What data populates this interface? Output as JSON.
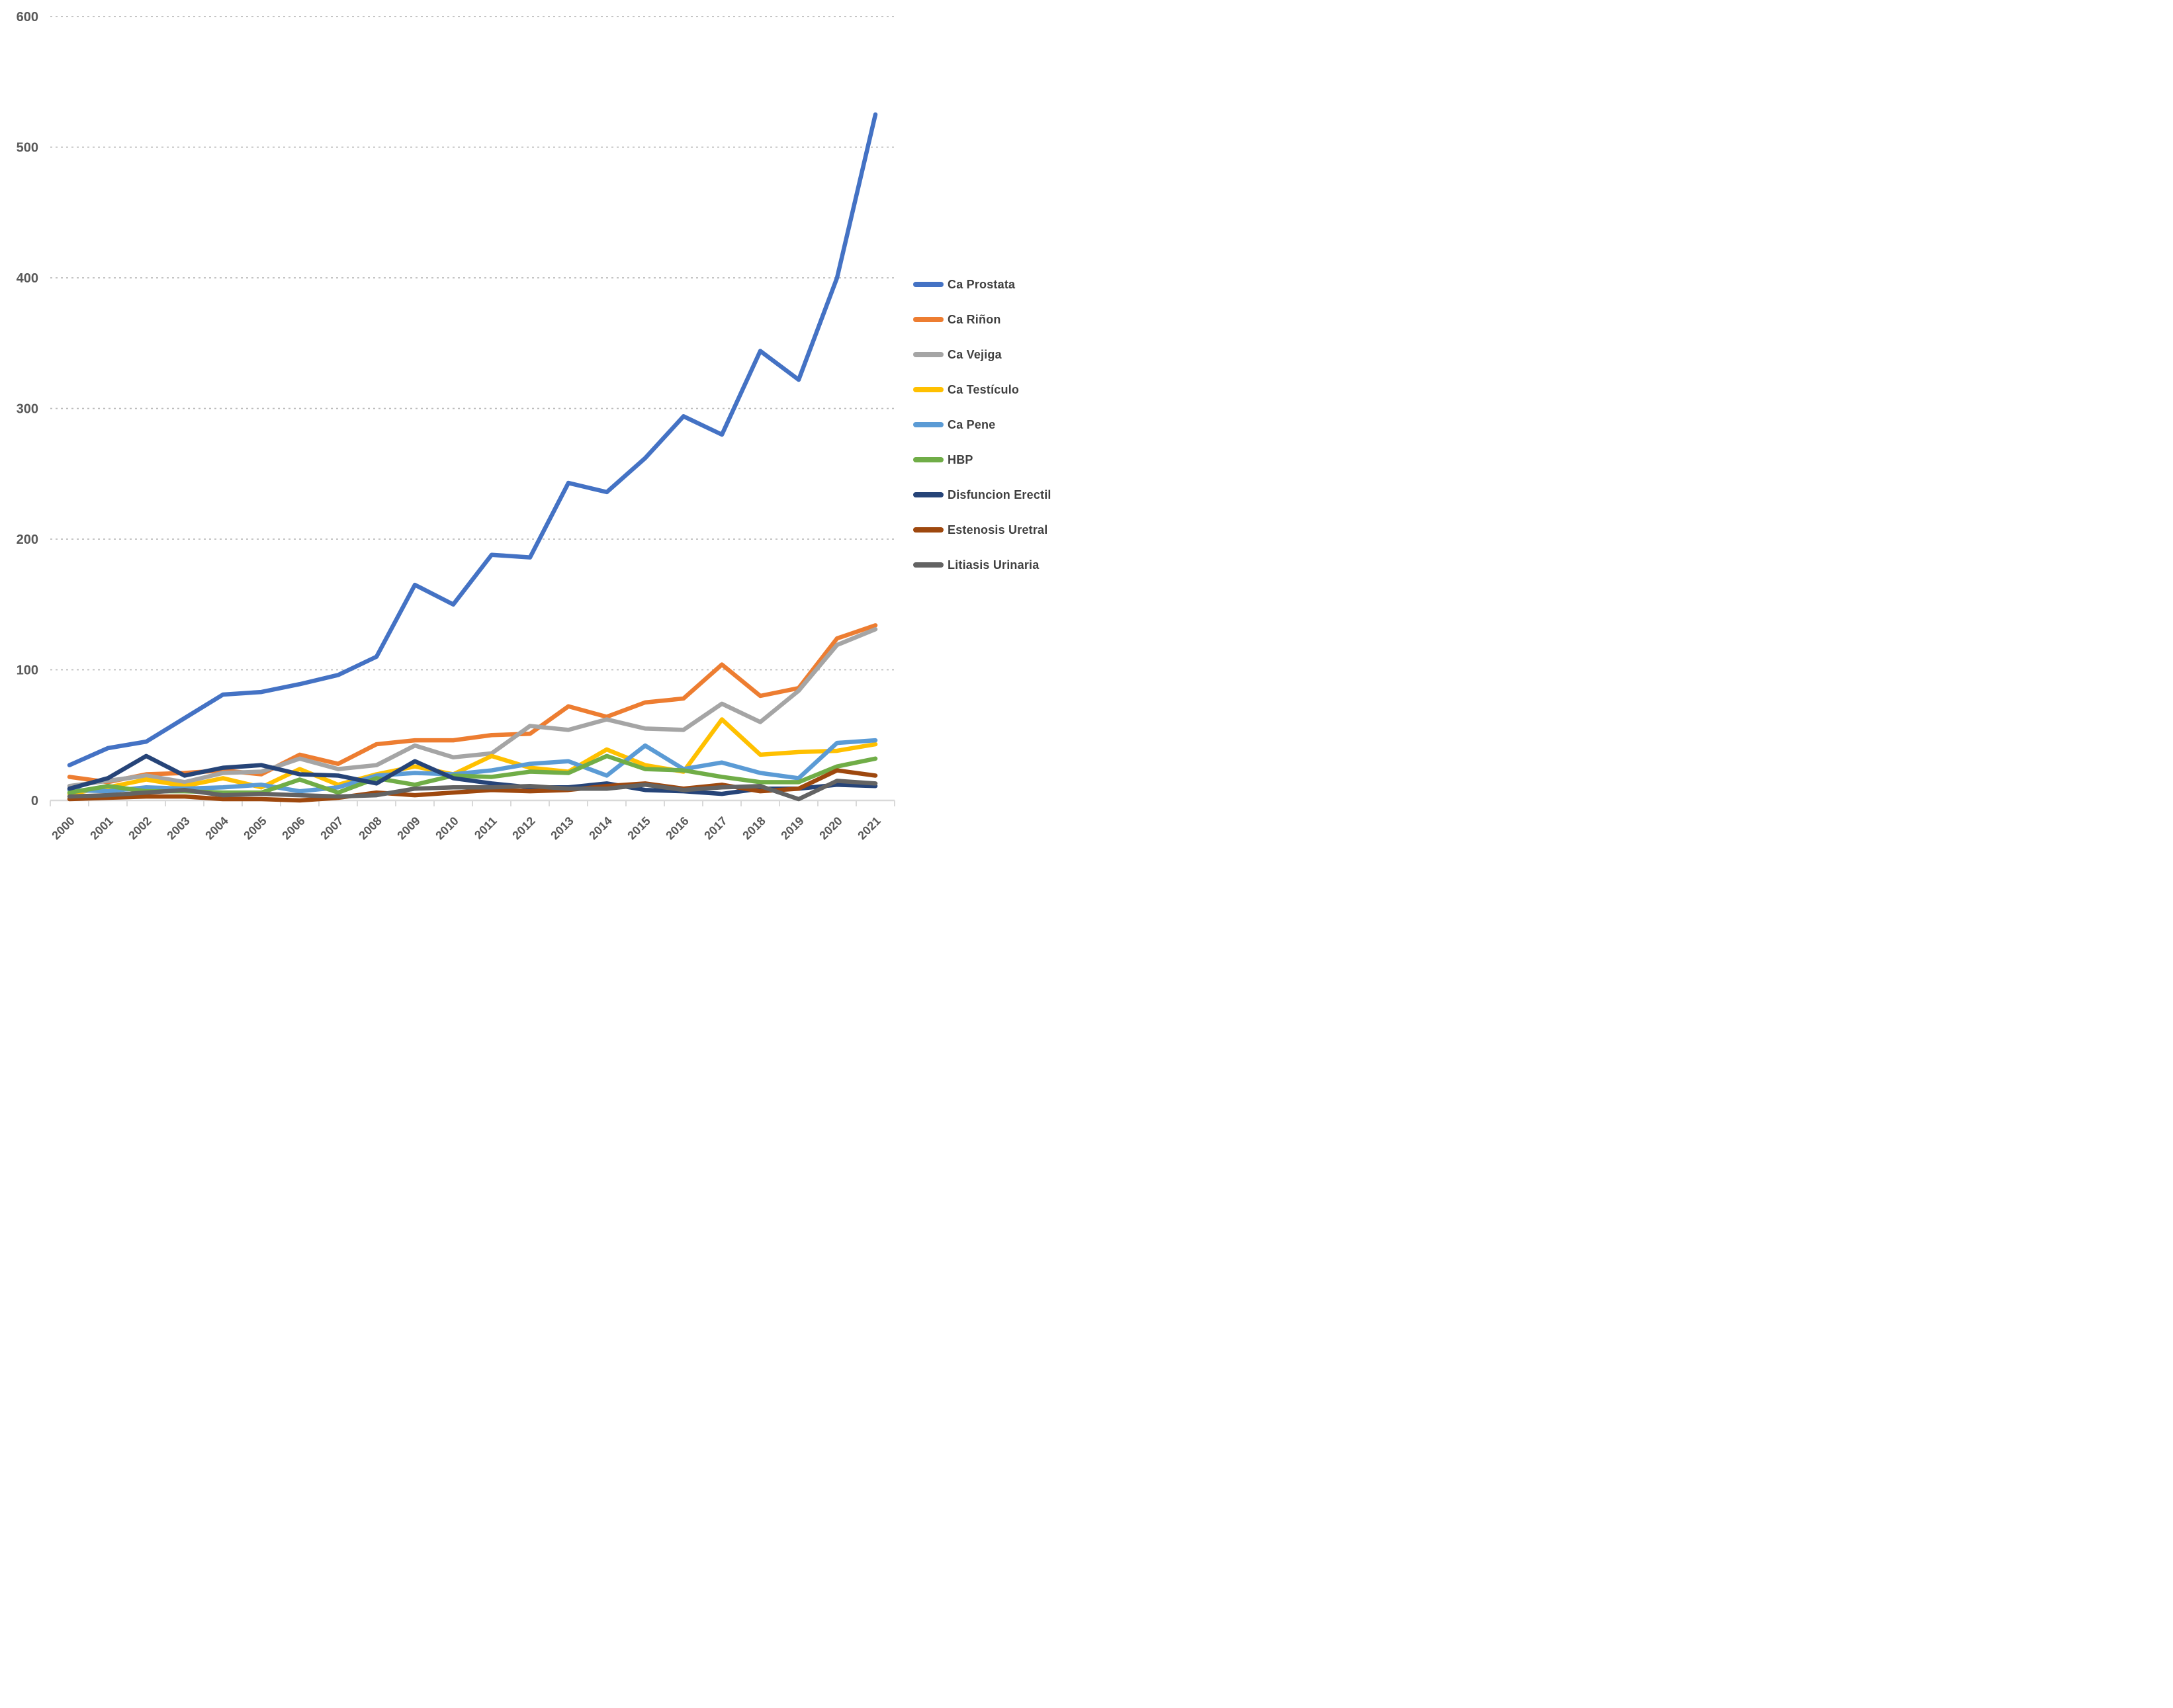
{
  "page": {
    "background_color": "#ffffff"
  },
  "chart_data": {
    "type": "line",
    "title": "",
    "xlabel": "",
    "ylabel": "",
    "x": [
      "2000",
      "2001",
      "2002",
      "2003",
      "2004",
      "2005",
      "2006",
      "2007",
      "2008",
      "2009",
      "2010",
      "2011",
      "2012",
      "2013",
      "2014",
      "2015",
      "2016",
      "2017",
      "2018",
      "2019",
      "2020",
      "2021"
    ],
    "ylim": [
      0,
      600
    ],
    "yticks": [
      0,
      100,
      200,
      300,
      400,
      500,
      600
    ],
    "grid": "horizontal-dashed",
    "gridline_color": "#bdbdbd",
    "axis_line_color": "#d9d9d9",
    "axis_label_color": "#595959",
    "legend_position": "right",
    "legend_label_color": "#404040",
    "series": [
      {
        "name": "Ca Prostata",
        "color": "#4472C4",
        "values": [
          27,
          40,
          45,
          63,
          81,
          83,
          89,
          96,
          110,
          165,
          150,
          188,
          186,
          243,
          236,
          262,
          294,
          280,
          344,
          322,
          400,
          525
        ]
      },
      {
        "name": "Ca Riñon",
        "color": "#ED7D31",
        "values": [
          18,
          14,
          20,
          21,
          23,
          20,
          35,
          28,
          43,
          46,
          46,
          50,
          51,
          72,
          64,
          75,
          78,
          104,
          80,
          86,
          124,
          134
        ]
      },
      {
        "name": "Ca Vejiga",
        "color": "#A5A5A5",
        "values": [
          11,
          15,
          19,
          14,
          21,
          22,
          32,
          24,
          27,
          42,
          33,
          36,
          57,
          54,
          62,
          55,
          54,
          74,
          60,
          84,
          119,
          131
        ]
      },
      {
        "name": "Ca Testículo",
        "color": "#FFC000",
        "values": [
          5,
          10,
          16,
          11,
          17,
          10,
          24,
          12,
          20,
          26,
          20,
          34,
          25,
          22,
          39,
          27,
          22,
          62,
          35,
          37,
          38,
          43
        ]
      },
      {
        "name": "Ca Pene",
        "color": "#5B9BD5",
        "values": [
          8,
          7,
          10,
          9,
          10,
          12,
          7,
          10,
          19,
          21,
          20,
          23,
          28,
          30,
          19,
          42,
          24,
          29,
          21,
          17,
          44,
          46
        ]
      },
      {
        "name": "HBP",
        "color": "#70AD47",
        "values": [
          6,
          11,
          7,
          7,
          6,
          6,
          16,
          6,
          17,
          12,
          19,
          18,
          22,
          21,
          34,
          24,
          23,
          18,
          14,
          14,
          26,
          32
        ]
      },
      {
        "name": "Disfuncion Erectil",
        "color": "#264478",
        "values": [
          9,
          17,
          34,
          19,
          25,
          27,
          20,
          19,
          13,
          30,
          17,
          13,
          10,
          10,
          13,
          8,
          7,
          5,
          9,
          9,
          12,
          11
        ]
      },
      {
        "name": "Estenosis Uretral",
        "color": "#9E480E",
        "values": [
          1,
          2,
          3,
          3,
          1,
          1,
          0,
          2,
          6,
          4,
          6,
          8,
          7,
          8,
          11,
          13,
          9,
          12,
          7,
          9,
          23,
          19
        ]
      },
      {
        "name": "Litiasis Urinaria",
        "color": "#636363",
        "values": [
          3,
          4,
          6,
          8,
          4,
          5,
          4,
          3,
          4,
          9,
          10,
          10,
          11,
          9,
          9,
          12,
          8,
          10,
          11,
          1,
          15,
          13
        ]
      }
    ]
  }
}
